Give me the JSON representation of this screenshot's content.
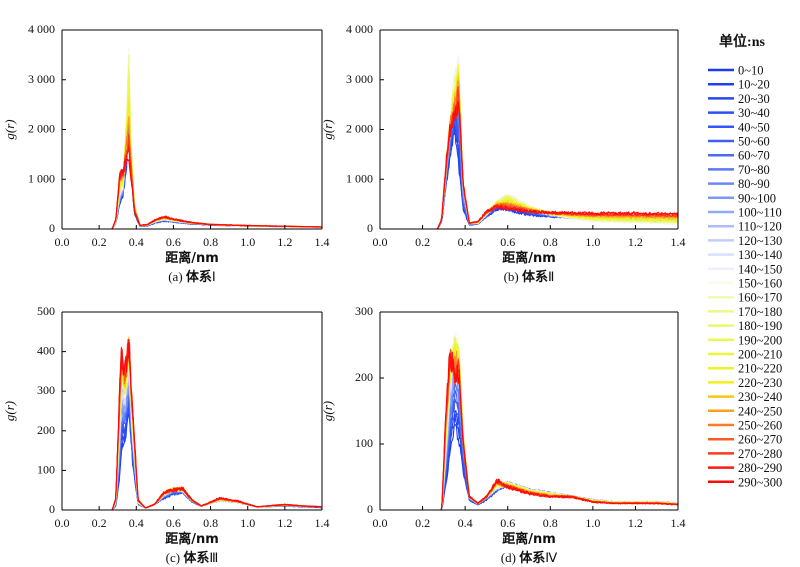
{
  "chart_data": [
    {
      "type": "line",
      "caption_prefix": "(a) ",
      "caption_bold": "体系",
      "caption_suffix": "Ⅰ",
      "xlabel": "距离/nm",
      "ylabel": "g(r)",
      "xlim": [
        0,
        1.4
      ],
      "ylim": [
        0,
        4000
      ],
      "xticks": [
        "0.0",
        "0.2",
        "0.4",
        "0.6",
        "0.8",
        "1.0",
        "1.2",
        "1.4"
      ],
      "yticks": [
        {
          "v": 0,
          "t": "0"
        },
        {
          "v": 1000,
          "t": "1 000"
        },
        {
          "v": 2000,
          "t": "2 000"
        },
        {
          "v": 3000,
          "t": "3 000"
        },
        {
          "v": 4000,
          "t": "4 000"
        }
      ],
      "profiles": {
        "x": [
          0,
          0.27,
          0.29,
          0.31,
          0.33,
          0.35,
          0.36,
          0.37,
          0.39,
          0.42,
          0.46,
          0.5,
          0.55,
          0.6,
          0.7,
          0.8,
          1.0,
          1.2,
          1.4
        ],
        "first": [
          0,
          0,
          120,
          500,
          700,
          1400,
          2000,
          1200,
          300,
          60,
          60,
          120,
          160,
          140,
          100,
          80,
          60,
          50,
          40
        ],
        "mid": [
          0,
          0,
          150,
          700,
          900,
          2500,
          3600,
          2000,
          500,
          80,
          80,
          150,
          200,
          170,
          120,
          90,
          60,
          50,
          40
        ],
        "last": [
          0,
          0,
          200,
          1100,
          1200,
          1400,
          1450,
          1100,
          350,
          70,
          90,
          180,
          250,
          200,
          130,
          90,
          70,
          55,
          40
        ]
      }
    },
    {
      "type": "line",
      "caption_prefix": "(b) ",
      "caption_bold": "体系",
      "caption_suffix": "Ⅱ",
      "xlabel": "距离/nm",
      "ylabel": "g(r)",
      "xlim": [
        0,
        1.4
      ],
      "ylim": [
        0,
        4000
      ],
      "xticks": [
        "0.0",
        "0.2",
        "0.4",
        "0.6",
        "0.8",
        "1.0",
        "1.2",
        "1.4"
      ],
      "yticks": [
        {
          "v": 0,
          "t": "0"
        },
        {
          "v": 1000,
          "t": "1 000"
        },
        {
          "v": 2000,
          "t": "2 000"
        },
        {
          "v": 3000,
          "t": "3 000"
        },
        {
          "v": 4000,
          "t": "4 000"
        }
      ],
      "profiles": {
        "x": [
          0,
          0.27,
          0.29,
          0.31,
          0.33,
          0.35,
          0.37,
          0.39,
          0.42,
          0.46,
          0.5,
          0.55,
          0.6,
          0.7,
          0.8,
          1.0,
          1.2,
          1.4
        ],
        "first": [
          0,
          0,
          150,
          900,
          1500,
          2000,
          1300,
          400,
          80,
          100,
          250,
          400,
          380,
          280,
          250,
          230,
          220,
          200
        ],
        "mid": [
          0,
          0,
          200,
          1200,
          2200,
          3000,
          3300,
          900,
          120,
          120,
          300,
          550,
          700,
          450,
          300,
          150,
          120,
          100
        ],
        "last": [
          0,
          0,
          200,
          1300,
          2000,
          2200,
          2600,
          900,
          120,
          150,
          350,
          450,
          400,
          350,
          330,
          320,
          320,
          300
        ]
      }
    },
    {
      "type": "line",
      "caption_prefix": "(c) ",
      "caption_bold": "体系",
      "caption_suffix": "Ⅲ",
      "xlabel": "距离/nm",
      "ylabel": "g(r)",
      "xlim": [
        0,
        1.4
      ],
      "ylim": [
        0,
        500
      ],
      "xticks": [
        "0.0",
        "0.2",
        "0.4",
        "0.6",
        "0.8",
        "1.0",
        "1.2",
        "1.4"
      ],
      "yticks": [
        {
          "v": 0,
          "t": "0"
        },
        {
          "v": 100,
          "t": "100"
        },
        {
          "v": 200,
          "t": "200"
        },
        {
          "v": 300,
          "t": "300"
        },
        {
          "v": 400,
          "t": "400"
        },
        {
          "v": 500,
          "t": "500"
        }
      ],
      "profiles": {
        "x": [
          0,
          0.27,
          0.29,
          0.31,
          0.32,
          0.34,
          0.36,
          0.38,
          0.41,
          0.45,
          0.5,
          0.55,
          0.6,
          0.65,
          0.7,
          0.75,
          0.85,
          0.95,
          1.05,
          1.2,
          1.3,
          1.4
        ],
        "first": [
          0,
          0,
          10,
          80,
          150,
          180,
          250,
          120,
          15,
          5,
          15,
          30,
          40,
          45,
          20,
          10,
          25,
          20,
          8,
          10,
          8,
          6
        ],
        "mid": [
          0,
          0,
          20,
          200,
          330,
          300,
          380,
          200,
          20,
          5,
          15,
          40,
          55,
          50,
          25,
          10,
          25,
          20,
          8,
          12,
          10,
          8
        ],
        "last": [
          0,
          0,
          30,
          300,
          400,
          350,
          430,
          250,
          25,
          5,
          15,
          45,
          50,
          55,
          25,
          10,
          30,
          22,
          8,
          14,
          10,
          8
        ]
      }
    },
    {
      "type": "line",
      "caption_prefix": "(d) ",
      "caption_bold": "体系",
      "caption_suffix": "Ⅳ",
      "xlabel": "距离/nm",
      "ylabel": "g(r)",
      "xlim": [
        0,
        1.4
      ],
      "ylim": [
        0,
        300
      ],
      "xticks": [
        "0.0",
        "0.2",
        "0.4",
        "0.6",
        "0.8",
        "1.0",
        "1.2",
        "1.4"
      ],
      "yticks": [
        {
          "v": 0,
          "t": "0"
        },
        {
          "v": 100,
          "t": "100"
        },
        {
          "v": 200,
          "t": "200"
        },
        {
          "v": 300,
          "t": "300"
        }
      ],
      "profiles": {
        "x": [
          0,
          0.29,
          0.31,
          0.33,
          0.35,
          0.37,
          0.39,
          0.42,
          0.46,
          0.5,
          0.55,
          0.6,
          0.7,
          0.8,
          0.9,
          1.0,
          1.1,
          1.2,
          1.3,
          1.4
        ],
        "first": [
          0,
          0,
          40,
          90,
          130,
          110,
          60,
          15,
          8,
          15,
          30,
          40,
          30,
          25,
          20,
          15,
          12,
          12,
          12,
          10
        ],
        "mid": [
          0,
          0,
          100,
          200,
          260,
          250,
          120,
          20,
          10,
          20,
          35,
          40,
          30,
          25,
          20,
          15,
          12,
          12,
          12,
          10
        ],
        "last": [
          0,
          0,
          150,
          240,
          200,
          210,
          100,
          20,
          10,
          20,
          45,
          35,
          25,
          20,
          20,
          12,
          10,
          10,
          10,
          8
        ]
      }
    }
  ],
  "legend": {
    "title": "单位:ns",
    "entries": [
      {
        "label": "0~10",
        "color": "#1a3cf0"
      },
      {
        "label": "10~20",
        "color": "#1e40f2"
      },
      {
        "label": "20~30",
        "color": "#2448f2"
      },
      {
        "label": "30~40",
        "color": "#2c50f4"
      },
      {
        "label": "40~50",
        "color": "#3558f4"
      },
      {
        "label": "50~60",
        "color": "#3e60f6"
      },
      {
        "label": "60~70",
        "color": "#4a6af6"
      },
      {
        "label": "70~80",
        "color": "#5878f6"
      },
      {
        "label": "80~90",
        "color": "#6a88f8"
      },
      {
        "label": "90~100",
        "color": "#7e98f8"
      },
      {
        "label": "100~110",
        "color": "#94aaf8"
      },
      {
        "label": "110~120",
        "color": "#aabcfa"
      },
      {
        "label": "120~130",
        "color": "#c0cefa"
      },
      {
        "label": "130~140",
        "color": "#d8e0fc"
      },
      {
        "label": "140~150",
        "color": "#eef0fc"
      },
      {
        "label": "150~160",
        "color": "#fafce8"
      },
      {
        "label": "160~170",
        "color": "#f4f8b0"
      },
      {
        "label": "170~180",
        "color": "#eef888"
      },
      {
        "label": "180~190",
        "color": "#eaf870"
      },
      {
        "label": "190~200",
        "color": "#e8f850"
      },
      {
        "label": "200~210",
        "color": "#e8f838"
      },
      {
        "label": "210~220",
        "color": "#ecf428"
      },
      {
        "label": "220~230",
        "color": "#f2ee20"
      },
      {
        "label": "230~240",
        "color": "#f8c818"
      },
      {
        "label": "240~250",
        "color": "#fca020"
      },
      {
        "label": "250~260",
        "color": "#fc7a28"
      },
      {
        "label": "260~270",
        "color": "#fc5a24"
      },
      {
        "label": "270~280",
        "color": "#fc3a1e"
      },
      {
        "label": "280~290",
        "color": "#fc1a14"
      },
      {
        "label": "290~300",
        "color": "#fc0a0a"
      }
    ]
  }
}
